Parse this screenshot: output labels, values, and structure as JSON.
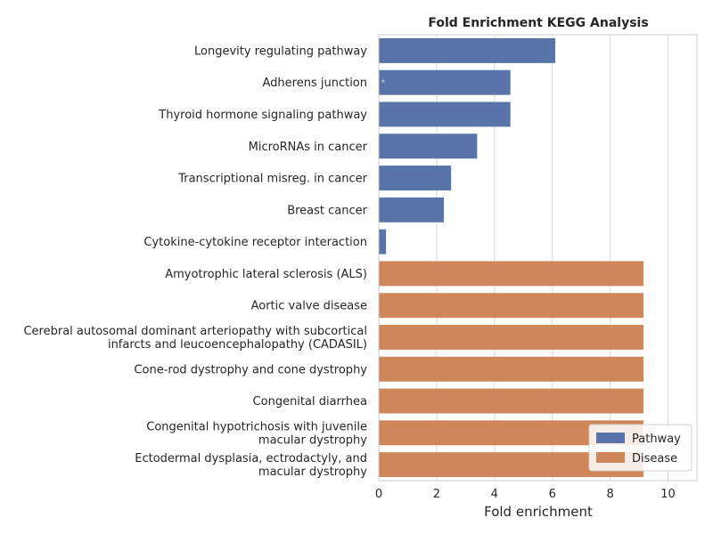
{
  "chart_data": {
    "type": "bar",
    "orientation": "horizontal",
    "title": "Fold Enrichment KEGG Analysis",
    "xlabel": "Fold enrichment",
    "ylabel": "",
    "xlim": [
      0,
      11
    ],
    "xticks": [
      0,
      2,
      4,
      6,
      8,
      10
    ],
    "grid": "vertical",
    "legend_position": "lower-right",
    "categories": [
      [
        "Longevity regulating pathway"
      ],
      [
        "Adherens junction"
      ],
      [
        "Thyroid hormone signaling pathway"
      ],
      [
        "MicroRNAs in cancer"
      ],
      [
        "Transcriptional misreg. in cancer"
      ],
      [
        "Breast cancer"
      ],
      [
        "Cytokine-cytokine receptor interaction"
      ],
      [
        "Amyotrophic lateral sclerosis (ALS)"
      ],
      [
        "Aortic valve disease"
      ],
      [
        "Cerebral autosomal dominant arteriopathy with subcortical",
        "infarcts and leucoencephalopathy (CADASIL)"
      ],
      [
        "Cone-rod dystrophy and cone dystrophy"
      ],
      [
        "Congenital diarrhea"
      ],
      [
        "Congenital hypotrichosis with juvenile",
        "macular dystrophy"
      ],
      [
        "Ectodermal dysplasia, ectrodactyly, and",
        "macular dystrophy"
      ]
    ],
    "values": [
      6.1,
      4.55,
      4.55,
      3.4,
      2.5,
      2.25,
      0.25,
      9.15,
      9.15,
      9.15,
      9.15,
      9.15,
      9.15,
      9.15
    ],
    "groups": [
      "Pathway",
      "Pathway",
      "Pathway",
      "Pathway",
      "Pathway",
      "Pathway",
      "Pathway",
      "Disease",
      "Disease",
      "Disease",
      "Disease",
      "Disease",
      "Disease",
      "Disease"
    ],
    "series": [
      {
        "name": "Pathway",
        "color": "#5874a8"
      },
      {
        "name": "Disease",
        "color": "#cf8759"
      }
    ],
    "annotations": [
      {
        "category_index": 1,
        "x": 0.15,
        "text": "*"
      }
    ]
  }
}
